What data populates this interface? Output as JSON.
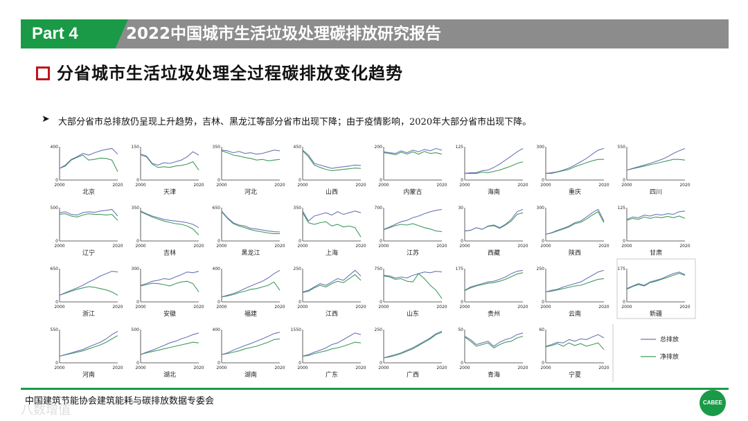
{
  "header": {
    "part_label": "Part 4",
    "report_title": "2022中国城市生活垃圾处理碳排放研究报告",
    "section_title": "分省城市生活垃圾处理全过程碳排放变化趋势",
    "bullet": "大部分省市总排放仍呈现上升趋势，吉林、黑龙江等部分省市出现下降；由于疫情影响，2020年大部分省市出现下降。"
  },
  "colors": {
    "total": "#6a75b8",
    "net": "#3f9a5a",
    "accent_green": "#1a9a47",
    "accent_red": "#c0141a",
    "topbar_gray": "#8c8c8c"
  },
  "footer": {
    "org": "中国建筑节能协会建筑能耗与碳排放数据专委会",
    "watermark": "八数增值",
    "logo_text": "CABEE"
  },
  "chart_data": {
    "type": "line",
    "legend": {
      "total": "总排放",
      "net": "净排放",
      "placement": "bottom-right"
    },
    "x_ticks": [
      "2000",
      "2020"
    ],
    "panels": [
      {
        "name": "北京",
        "ymax": 400,
        "total": [
          0.35,
          0.45,
          0.62,
          0.7,
          0.8,
          0.75,
          0.82,
          0.88,
          0.92,
          0.95,
          0.78
        ],
        "net": [
          0.35,
          0.42,
          0.6,
          0.68,
          0.75,
          0.6,
          0.62,
          0.66,
          0.65,
          0.6,
          0.25
        ]
      },
      {
        "name": "天津",
        "ymax": 150,
        "total": [
          0.78,
          0.72,
          0.5,
          0.45,
          0.52,
          0.5,
          0.55,
          0.6,
          0.7,
          0.85,
          0.75
        ],
        "net": [
          0.76,
          0.7,
          0.48,
          0.38,
          0.4,
          0.38,
          0.42,
          0.44,
          0.48,
          0.55,
          0.3
        ]
      },
      {
        "name": "河北",
        "ymax": 350,
        "total": [
          0.9,
          0.88,
          0.82,
          0.86,
          0.8,
          0.82,
          0.78,
          0.8,
          0.85,
          0.9,
          0.88
        ],
        "net": [
          0.88,
          0.82,
          0.75,
          0.72,
          0.68,
          0.65,
          0.6,
          0.62,
          0.58,
          0.6,
          0.62
        ]
      },
      {
        "name": "山西",
        "ymax": 450,
        "total": [
          0.9,
          0.75,
          0.5,
          0.45,
          0.4,
          0.35,
          0.38,
          0.4,
          0.42,
          0.45,
          0.44
        ],
        "net": [
          0.88,
          0.7,
          0.45,
          0.38,
          0.32,
          0.28,
          0.3,
          0.32,
          0.34,
          0.36,
          0.35
        ]
      },
      {
        "name": "内蒙古",
        "ymax": 200,
        "total": [
          0.85,
          0.82,
          0.8,
          0.88,
          0.82,
          0.9,
          0.85,
          0.92,
          0.88,
          0.95,
          0.9
        ],
        "net": [
          0.82,
          0.8,
          0.76,
          0.84,
          0.78,
          0.85,
          0.78,
          0.86,
          0.8,
          0.82,
          0.78
        ]
      },
      {
        "name": "海南",
        "ymax": 125,
        "total": [
          0.2,
          0.22,
          0.22,
          0.28,
          0.3,
          0.38,
          0.48,
          0.6,
          0.72,
          0.85,
          0.95
        ],
        "net": [
          0.2,
          0.2,
          0.2,
          0.24,
          0.22,
          0.26,
          0.3,
          0.36,
          0.42,
          0.5,
          0.55
        ]
      },
      {
        "name": "重庆",
        "ymax": 300,
        "total": [
          0.2,
          0.22,
          0.25,
          0.3,
          0.36,
          0.45,
          0.55,
          0.65,
          0.78,
          0.9,
          0.95
        ],
        "net": [
          0.2,
          0.2,
          0.24,
          0.28,
          0.32,
          0.4,
          0.46,
          0.52,
          0.58,
          0.62,
          0.62
        ]
      },
      {
        "name": "四川",
        "ymax": 550,
        "total": [
          0.3,
          0.35,
          0.4,
          0.45,
          0.5,
          0.56,
          0.62,
          0.7,
          0.8,
          0.88,
          0.95
        ],
        "net": [
          0.3,
          0.34,
          0.38,
          0.42,
          0.46,
          0.5,
          0.54,
          0.58,
          0.62,
          0.62,
          0.6
        ]
      },
      {
        "name": "辽宁",
        "ymax": 500,
        "total": [
          0.85,
          0.88,
          0.8,
          0.78,
          0.85,
          0.88,
          0.86,
          0.9,
          0.92,
          0.95,
          0.75
        ],
        "net": [
          0.8,
          0.82,
          0.75,
          0.72,
          0.78,
          0.82,
          0.8,
          0.8,
          0.78,
          0.8,
          0.62
        ]
      },
      {
        "name": "吉林",
        "ymax": 350,
        "total": [
          0.9,
          0.82,
          0.75,
          0.7,
          0.65,
          0.62,
          0.6,
          0.58,
          0.55,
          0.5,
          0.4
        ],
        "net": [
          0.88,
          0.8,
          0.72,
          0.66,
          0.6,
          0.56,
          0.52,
          0.5,
          0.45,
          0.36,
          0.18
        ]
      },
      {
        "name": "黑龙江",
        "ymax": 650,
        "total": [
          0.9,
          0.7,
          0.55,
          0.48,
          0.45,
          0.38,
          0.36,
          0.33,
          0.3,
          0.28,
          0.27
        ],
        "net": [
          0.88,
          0.68,
          0.52,
          0.45,
          0.4,
          0.34,
          0.3,
          0.27,
          0.24,
          0.22,
          0.22
        ]
      },
      {
        "name": "上海",
        "ymax": 350,
        "total": [
          0.9,
          0.6,
          0.75,
          0.8,
          0.85,
          0.78,
          0.88,
          0.8,
          0.85,
          0.9,
          0.85
        ],
        "net": [
          0.85,
          0.55,
          0.5,
          0.55,
          0.58,
          0.45,
          0.5,
          0.42,
          0.45,
          0.4,
          0.12
        ]
      },
      {
        "name": "江苏",
        "ymax": 700,
        "total": [
          0.35,
          0.42,
          0.5,
          0.58,
          0.62,
          0.7,
          0.75,
          0.82,
          0.88,
          0.92,
          0.95
        ],
        "net": [
          0.34,
          0.4,
          0.46,
          0.5,
          0.48,
          0.52,
          0.46,
          0.4,
          0.36,
          0.3,
          0.28
        ]
      },
      {
        "name": "西藏",
        "ymax": 30,
        "total": [
          0.3,
          0.32,
          0.4,
          0.35,
          0.45,
          0.48,
          0.4,
          0.5,
          0.65,
          0.88,
          0.95
        ],
        "net": [
          0.3,
          0.32,
          0.4,
          0.35,
          0.44,
          0.46,
          0.38,
          0.48,
          0.6,
          0.8,
          0.85
        ]
      },
      {
        "name": "陕西",
        "ymax": 300,
        "total": [
          0.2,
          0.25,
          0.32,
          0.38,
          0.45,
          0.55,
          0.6,
          0.72,
          0.85,
          0.95,
          0.6
        ],
        "net": [
          0.2,
          0.24,
          0.3,
          0.36,
          0.42,
          0.52,
          0.56,
          0.66,
          0.78,
          0.88,
          0.55
        ]
      },
      {
        "name": "甘肃",
        "ymax": 125,
        "total": [
          0.65,
          0.72,
          0.7,
          0.78,
          0.75,
          0.8,
          0.78,
          0.82,
          0.8,
          0.88,
          0.9
        ],
        "net": [
          0.62,
          0.68,
          0.65,
          0.72,
          0.68,
          0.72,
          0.7,
          0.74,
          0.7,
          0.75,
          0.68
        ]
      },
      {
        "name": "浙江",
        "ymax": 650,
        "total": [
          0.2,
          0.28,
          0.35,
          0.42,
          0.5,
          0.6,
          0.68,
          0.78,
          0.85,
          0.92,
          0.9
        ],
        "net": [
          0.2,
          0.26,
          0.32,
          0.38,
          0.42,
          0.46,
          0.44,
          0.4,
          0.36,
          0.3,
          0.2
        ]
      },
      {
        "name": "安徽",
        "ymax": 300,
        "total": [
          0.5,
          0.55,
          0.62,
          0.65,
          0.7,
          0.68,
          0.75,
          0.82,
          0.9,
          0.88,
          0.92
        ],
        "net": [
          0.48,
          0.52,
          0.56,
          0.55,
          0.52,
          0.48,
          0.55,
          0.6,
          0.62,
          0.55,
          0.3
        ]
      },
      {
        "name": "福建",
        "ymax": 400,
        "total": [
          0.15,
          0.2,
          0.25,
          0.32,
          0.4,
          0.48,
          0.55,
          0.62,
          0.72,
          0.85,
          0.95
        ],
        "net": [
          0.15,
          0.18,
          0.22,
          0.28,
          0.32,
          0.38,
          0.4,
          0.45,
          0.5,
          0.6,
          0.35
        ]
      },
      {
        "name": "江西",
        "ymax": 250,
        "total": [
          0.3,
          0.35,
          0.45,
          0.55,
          0.5,
          0.6,
          0.7,
          0.65,
          0.8,
          0.95,
          0.78
        ],
        "net": [
          0.28,
          0.32,
          0.42,
          0.5,
          0.45,
          0.55,
          0.62,
          0.58,
          0.7,
          0.82,
          0.65
        ]
      },
      {
        "name": "山东",
        "ymax": 750,
        "total": [
          0.8,
          0.78,
          0.72,
          0.75,
          0.72,
          0.8,
          0.85,
          0.9,
          0.88,
          0.92,
          0.9
        ],
        "net": [
          0.78,
          0.75,
          0.68,
          0.7,
          0.62,
          0.6,
          0.85,
          0.7,
          0.5,
          0.35,
          0.1
        ]
      },
      {
        "name": "贵州",
        "ymax": 175,
        "total": [
          0.35,
          0.45,
          0.5,
          0.55,
          0.6,
          0.62,
          0.68,
          0.75,
          0.85,
          0.92,
          0.95
        ],
        "net": [
          0.34,
          0.42,
          0.48,
          0.52,
          0.56,
          0.58,
          0.62,
          0.68,
          0.76,
          0.84,
          0.88
        ]
      },
      {
        "name": "云南",
        "ymax": 250,
        "total": [
          0.3,
          0.35,
          0.38,
          0.45,
          0.5,
          0.55,
          0.6,
          0.7,
          0.8,
          0.9,
          0.95
        ],
        "net": [
          0.3,
          0.32,
          0.36,
          0.4,
          0.44,
          0.48,
          0.5,
          0.56,
          0.62,
          0.68,
          0.7
        ]
      },
      {
        "name": "新疆",
        "ymax": 175,
        "total": [
          0.4,
          0.48,
          0.55,
          0.5,
          0.6,
          0.65,
          0.7,
          0.78,
          0.85,
          0.9,
          0.82
        ],
        "net": [
          0.38,
          0.46,
          0.52,
          0.48,
          0.58,
          0.62,
          0.68,
          0.74,
          0.8,
          0.86,
          0.8
        ]
      },
      {
        "name": "河南",
        "ymax": 550,
        "total": [
          0.2,
          0.25,
          0.3,
          0.35,
          0.4,
          0.48,
          0.55,
          0.62,
          0.72,
          0.85,
          0.95
        ],
        "net": [
          0.2,
          0.24,
          0.28,
          0.32,
          0.36,
          0.42,
          0.48,
          0.54,
          0.62,
          0.72,
          0.82
        ]
      },
      {
        "name": "湖北",
        "ymax": 500,
        "total": [
          0.25,
          0.32,
          0.38,
          0.45,
          0.52,
          0.6,
          0.65,
          0.72,
          0.78,
          0.85,
          0.9
        ],
        "net": [
          0.25,
          0.3,
          0.34,
          0.38,
          0.42,
          0.46,
          0.5,
          0.54,
          0.58,
          0.62,
          0.6
        ]
      },
      {
        "name": "湖南",
        "ymax": 400,
        "total": [
          0.25,
          0.3,
          0.38,
          0.45,
          0.52,
          0.58,
          0.65,
          0.72,
          0.8,
          0.88,
          0.92
        ],
        "net": [
          0.25,
          0.28,
          0.32,
          0.36,
          0.42,
          0.46,
          0.5,
          0.56,
          0.62,
          0.7,
          0.72
        ]
      },
      {
        "name": "广东",
        "ymax": 1550,
        "total": [
          0.2,
          0.25,
          0.32,
          0.38,
          0.45,
          0.55,
          0.6,
          0.7,
          0.8,
          0.9,
          0.85
        ],
        "net": [
          0.2,
          0.22,
          0.28,
          0.32,
          0.36,
          0.42,
          0.45,
          0.5,
          0.56,
          0.62,
          0.6
        ]
      },
      {
        "name": "广西",
        "ymax": 250,
        "total": [
          0.15,
          0.2,
          0.25,
          0.3,
          0.38,
          0.45,
          0.55,
          0.65,
          0.75,
          0.88,
          0.95
        ],
        "net": [
          0.15,
          0.18,
          0.22,
          0.28,
          0.35,
          0.42,
          0.52,
          0.62,
          0.72,
          0.85,
          0.92
        ]
      },
      {
        "name": "青海",
        "ymax": 50,
        "total": [
          0.8,
          0.7,
          0.55,
          0.6,
          0.65,
          0.5,
          0.62,
          0.7,
          0.75,
          0.85,
          0.9
        ],
        "net": [
          0.78,
          0.65,
          0.5,
          0.55,
          0.6,
          0.45,
          0.55,
          0.62,
          0.65,
          0.75,
          0.8
        ]
      },
      {
        "name": "宁夏",
        "ymax": 60,
        "total": [
          0.5,
          0.55,
          0.62,
          0.6,
          0.7,
          0.65,
          0.72,
          0.7,
          0.78,
          0.85,
          0.75
        ],
        "net": [
          0.48,
          0.52,
          0.58,
          0.5,
          0.6,
          0.52,
          0.58,
          0.5,
          0.55,
          0.6,
          0.4
        ]
      }
    ]
  }
}
